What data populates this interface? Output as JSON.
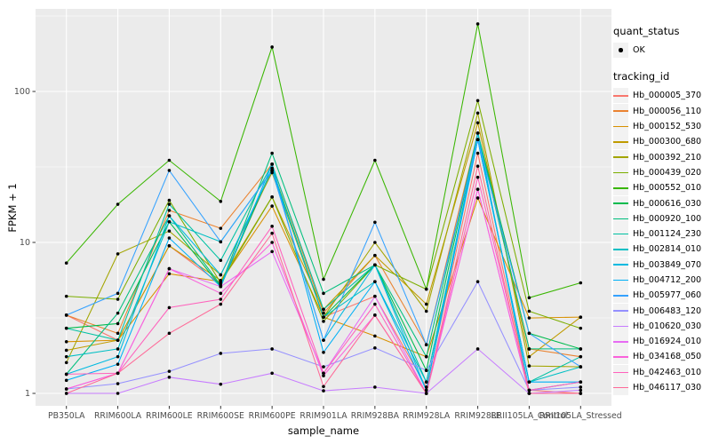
{
  "figure": {
    "y_axis_title": "FPKM + 1",
    "x_axis_title": "sample_name",
    "legend": {
      "quant_title": "quant_status",
      "quant_item": "OK",
      "tracking_title": "tracking_id"
    }
  },
  "chart_data": {
    "type": "line",
    "title": "",
    "xlabel": "sample_name",
    "ylabel": "FPKM + 1",
    "y_scale": "log10",
    "ylim": [
      1,
      350
    ],
    "y_ticks": [
      1,
      10,
      100
    ],
    "grid": true,
    "legend_position": "right",
    "panel_background": "#EBEBEB",
    "gridline_color": "#FFFFFF",
    "point_color": "#000000",
    "point_shape": "circle",
    "quant_status_value": "OK",
    "categories": [
      "PB350LA",
      "RRIM600LA",
      "RRIM600LE",
      "RRIM600SE",
      "RRIM600PE",
      "RRIM901LA",
      "RRIM928BA",
      "RRIM928LA",
      "RRIM928LE",
      "RRII105LA_Control",
      "RRII105LA_Stressed"
    ],
    "series": [
      {
        "name": "Hb_000005_370",
        "color": "#F8766D",
        "values": [
          3.3,
          2.25,
          9.5,
          5.3,
          30,
          3.2,
          4.4,
          1.1,
          39,
          1.05,
          1.0
        ]
      },
      {
        "name": "Hb_000056_110",
        "color": "#EA8331",
        "values": [
          3.3,
          2.5,
          16.3,
          12.4,
          33,
          3.4,
          8.2,
          2.1,
          53,
          1.97,
          1.75
        ]
      },
      {
        "name": "Hb_000152_530",
        "color": "#D89000",
        "values": [
          2.2,
          2.25,
          6.2,
          5.5,
          17.4,
          3.2,
          2.4,
          1.75,
          19.7,
          3.16,
          3.2
        ]
      },
      {
        "name": "Hb_000300_680",
        "color": "#C09B00",
        "values": [
          1.93,
          2.25,
          9.5,
          5.6,
          20,
          3.6,
          8.2,
          3.9,
          62,
          1.75,
          3.2
        ]
      },
      {
        "name": "Hb_000392_210",
        "color": "#A3A500",
        "values": [
          1.6,
          8.4,
          11.9,
          6.1,
          29,
          3.2,
          10,
          3.5,
          72,
          1.52,
          1.5
        ]
      },
      {
        "name": "Hb_000439_020",
        "color": "#7CAE00",
        "values": [
          4.4,
          4.2,
          19,
          5.4,
          20,
          3.0,
          7.1,
          4.9,
          87,
          3.5,
          2.7
        ]
      },
      {
        "name": "Hb_000552_010",
        "color": "#39B600",
        "values": [
          7.3,
          17.9,
          35,
          18.7,
          197,
          5.7,
          35,
          4.9,
          280,
          4.3,
          5.4
        ]
      },
      {
        "name": "Hb_000616_030",
        "color": "#00BB4E",
        "values": [
          2.7,
          2.9,
          13.7,
          5.1,
          31,
          3.2,
          7.1,
          1.42,
          53,
          2.5,
          1.97
        ]
      },
      {
        "name": "Hb_000920_100",
        "color": "#00BF7D",
        "values": [
          1.34,
          3.4,
          15,
          5.2,
          39,
          4.6,
          7.1,
          1.75,
          53,
          1.97,
          1.97
        ]
      },
      {
        "name": "Hb_001124_230",
        "color": "#00C1A3",
        "values": [
          2.7,
          2.25,
          17.9,
          7.6,
          33,
          3.6,
          7.1,
          1.19,
          48,
          1.19,
          1.75
        ]
      },
      {
        "name": "Hb_002814_010",
        "color": "#00BFC4",
        "values": [
          1.75,
          1.97,
          13.7,
          10.1,
          30,
          3.2,
          5.5,
          1.19,
          48,
          1.19,
          1.5
        ]
      },
      {
        "name": "Hb_003849_070",
        "color": "#00BAE0",
        "values": [
          1.34,
          1.75,
          15,
          6.1,
          30,
          2.25,
          7.1,
          1.05,
          53,
          1.05,
          1.19
        ]
      },
      {
        "name": "Hb_004712_200",
        "color": "#00B0F6",
        "values": [
          1.22,
          1.56,
          10.7,
          5.1,
          33,
          1.87,
          5.5,
          1.05,
          48,
          1.19,
          1.19
        ]
      },
      {
        "name": "Hb_005977_060",
        "color": "#35A2FF",
        "values": [
          3.3,
          4.6,
          30,
          10.1,
          30,
          2.25,
          13.6,
          2.1,
          48,
          2.5,
          1.5
        ]
      },
      {
        "name": "Hb_006483_120",
        "color": "#9590FF",
        "values": [
          1.07,
          1.16,
          1.4,
          1.84,
          1.97,
          1.5,
          2.0,
          1.42,
          5.5,
          1.05,
          1.1
        ]
      },
      {
        "name": "Hb_010620_030",
        "color": "#C77CFF",
        "values": [
          1.0,
          1.0,
          1.28,
          1.15,
          1.36,
          1.04,
          1.1,
          1.0,
          1.97,
          1.0,
          1.05
        ]
      },
      {
        "name": "Hb_016924_010",
        "color": "#E76BF3",
        "values": [
          1.07,
          1.36,
          6.7,
          5.1,
          8.7,
          1.36,
          4.4,
          1.0,
          22.5,
          1.0,
          1.0
        ]
      },
      {
        "name": "Hb_034168_050",
        "color": "#FA62DB",
        "values": [
          1.07,
          1.36,
          6.7,
          4.6,
          10,
          1.31,
          3.3,
          1.0,
          22.5,
          1.0,
          1.0
        ]
      },
      {
        "name": "Hb_042463_010",
        "color": "#FF62BC",
        "values": [
          1.34,
          1.36,
          3.7,
          4.2,
          12.8,
          1.36,
          3.9,
          1.0,
          27,
          1.05,
          1.19
        ]
      },
      {
        "name": "Hb_046117_030",
        "color": "#FF6A98",
        "values": [
          1.0,
          1.36,
          2.5,
          3.9,
          11.5,
          1.11,
          3.3,
          1.0,
          32,
          1.0,
          1.0
        ]
      }
    ]
  }
}
